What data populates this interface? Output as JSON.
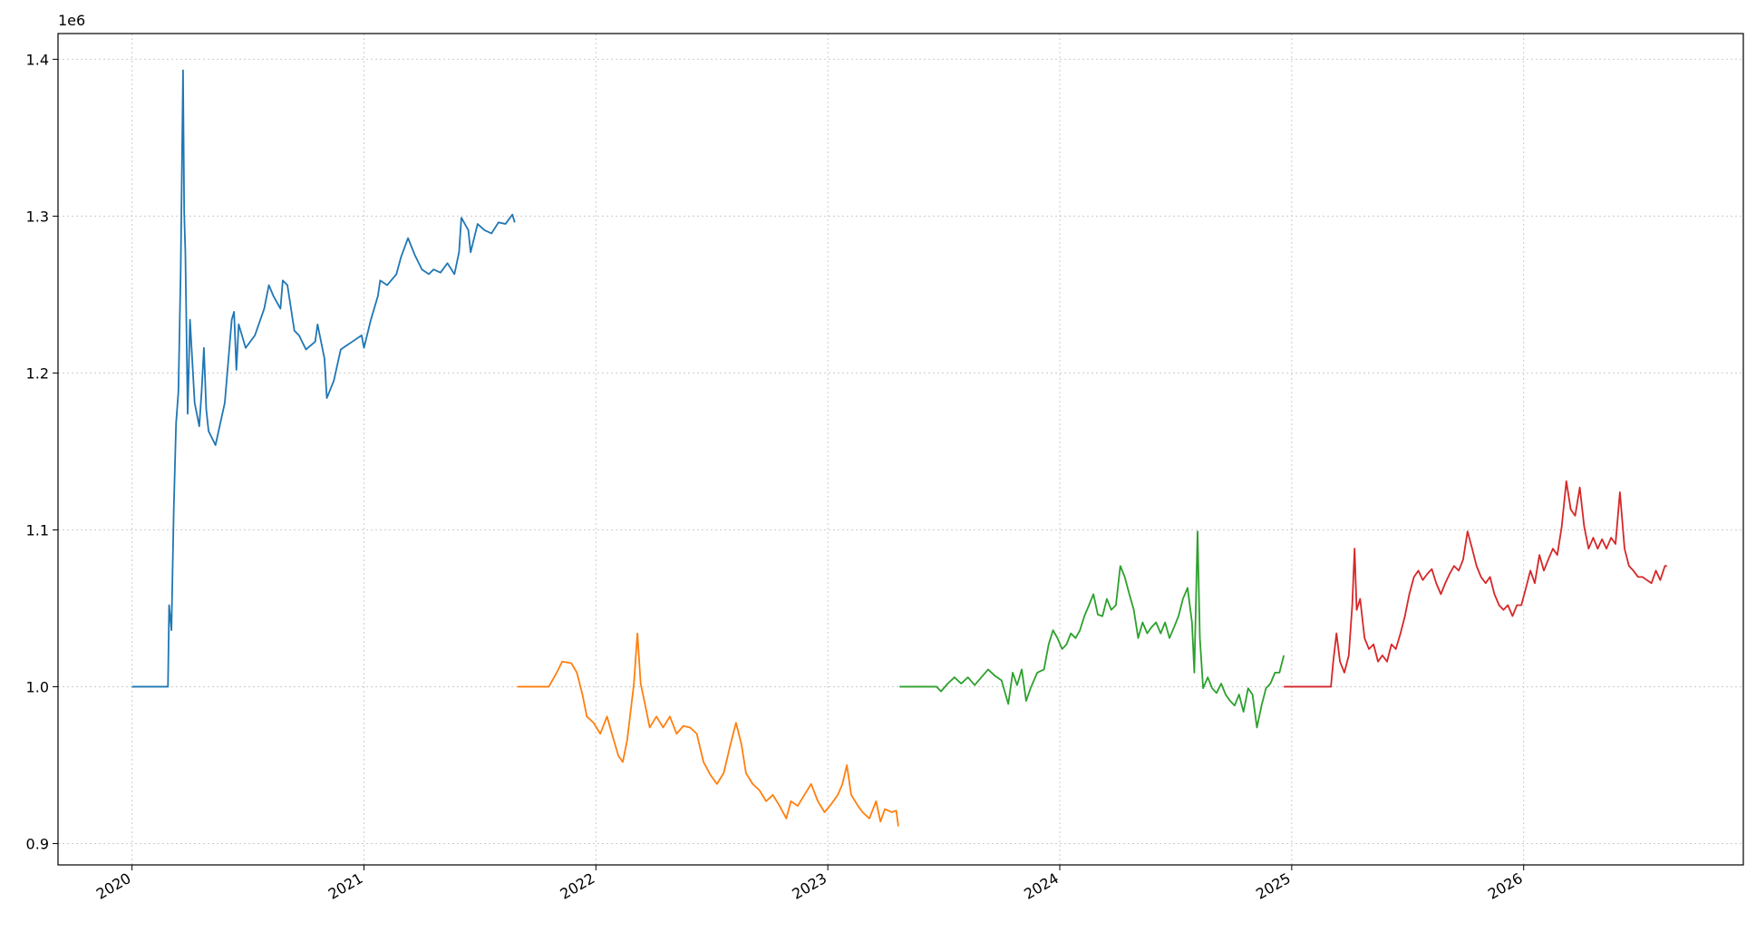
{
  "chart_data": {
    "type": "line",
    "y_offset_text": "1e6",
    "xlim": [
      2019.681,
      2026.947
    ],
    "xticks": [
      2020,
      2021,
      2022,
      2023,
      2024,
      2025,
      2026
    ],
    "ylim": [
      886400,
      1416400
    ],
    "yticks": [
      {
        "value": 900000,
        "label": "0.9"
      },
      {
        "value": 1000000,
        "label": "1.0"
      },
      {
        "value": 1100000,
        "label": "1.1"
      },
      {
        "value": 1200000,
        "label": "1.2"
      },
      {
        "value": 1300000,
        "label": "1.3"
      },
      {
        "value": 1400000,
        "label": "1.4"
      }
    ],
    "grid": true,
    "series": [
      {
        "color": "#1f77b4",
        "x": [
          2020.0,
          2020.155,
          2020.16,
          2020.17,
          2020.18,
          2020.19,
          2020.2,
          2020.21,
          2020.22,
          2020.225,
          2020.23,
          2020.24,
          2020.25,
          2020.27,
          2020.29,
          2020.3,
          2020.31,
          2020.32,
          2020.33,
          2020.36,
          2020.4,
          2020.43,
          2020.44,
          2020.45,
          2020.46,
          2020.49,
          2020.53,
          2020.57,
          2020.59,
          2020.61,
          2020.64,
          2020.65,
          2020.67,
          2020.7,
          2020.72,
          2020.75,
          2020.79,
          2020.8,
          2020.83,
          2020.84,
          2020.87,
          2020.9,
          2020.95,
          2020.99,
          2021.0,
          2021.03,
          2021.06,
          2021.07,
          2021.1,
          2021.14,
          2021.16,
          2021.19,
          2021.22,
          2021.25,
          2021.28,
          2021.3,
          2021.33,
          2021.36,
          2021.39,
          2021.41,
          2021.42,
          2021.45,
          2021.46,
          2021.49,
          2021.52,
          2021.55,
          2021.58,
          2021.61,
          2021.64,
          2021.65
        ],
        "values": [
          1000000,
          1000000,
          1052000,
          1036000,
          1113000,
          1168000,
          1188000,
          1266000,
          1393000,
          1302000,
          1277000,
          1174000,
          1234000,
          1181000,
          1166000,
          1188000,
          1216000,
          1177000,
          1163000,
          1154000,
          1181000,
          1234000,
          1239000,
          1202000,
          1231000,
          1216000,
          1224000,
          1241000,
          1256000,
          1249000,
          1241000,
          1259000,
          1256000,
          1227000,
          1224000,
          1215000,
          1220000,
          1231000,
          1209000,
          1184000,
          1195000,
          1215000,
          1220000,
          1224000,
          1216000,
          1234000,
          1249000,
          1259000,
          1256000,
          1263000,
          1274000,
          1286000,
          1275000,
          1266000,
          1263000,
          1266000,
          1264000,
          1270000,
          1263000,
          1277000,
          1299000,
          1291000,
          1277000,
          1295000,
          1291000,
          1289000,
          1296000,
          1295000,
          1301000,
          1296000
        ]
      },
      {
        "color": "#ff7f0e",
        "x": [
          2021.662,
          2021.797,
          2021.831,
          2021.855,
          2021.894,
          2021.918,
          2021.942,
          2021.961,
          2021.99,
          2022.019,
          2022.048,
          2022.077,
          2022.097,
          2022.116,
          2022.135,
          2022.164,
          2022.179,
          2022.193,
          2022.213,
          2022.232,
          2022.261,
          2022.29,
          2022.319,
          2022.348,
          2022.377,
          2022.406,
          2022.435,
          2022.464,
          2022.493,
          2022.522,
          2022.551,
          2022.58,
          2022.604,
          2022.628,
          2022.647,
          2022.676,
          2022.705,
          2022.734,
          2022.763,
          2022.792,
          2022.821,
          2022.841,
          2022.87,
          2022.899,
          2022.928,
          2022.957,
          2022.986,
          2023.014,
          2023.043,
          2023.063,
          2023.082,
          2023.101,
          2023.13,
          2023.15,
          2023.179,
          2023.208,
          2023.227,
          2023.246,
          2023.275,
          2023.295,
          2023.304
        ],
        "values": [
          1000000,
          1000000,
          1009000,
          1016000,
          1015000,
          1009000,
          995000,
          981000,
          977000,
          970000,
          981000,
          966000,
          956000,
          952000,
          966000,
          1002000,
          1034000,
          1002000,
          988000,
          974000,
          981000,
          974000,
          981000,
          970000,
          975000,
          974000,
          970000,
          952000,
          944000,
          938000,
          945000,
          963000,
          977000,
          963000,
          945000,
          938000,
          934000,
          927000,
          931000,
          924000,
          916000,
          927000,
          924000,
          931000,
          938000,
          927000,
          920000,
          925000,
          931000,
          938000,
          950000,
          931000,
          924000,
          920000,
          916000,
          927000,
          914000,
          922000,
          920000,
          921000,
          911000
        ]
      },
      {
        "color": "#2ca02c",
        "x": [
          2023.309,
          2023.469,
          2023.488,
          2023.517,
          2023.546,
          2023.575,
          2023.604,
          2023.633,
          2023.662,
          2023.691,
          2023.72,
          2023.749,
          2023.778,
          2023.797,
          2023.816,
          2023.836,
          2023.855,
          2023.874,
          2023.903,
          2023.932,
          2023.952,
          2023.971,
          2023.99,
          2024.01,
          2024.029,
          2024.048,
          2024.068,
          2024.087,
          2024.106,
          2024.126,
          2024.145,
          2024.164,
          2024.184,
          2024.203,
          2024.222,
          2024.242,
          2024.261,
          2024.28,
          2024.3,
          2024.319,
          2024.338,
          2024.357,
          2024.377,
          2024.396,
          2024.415,
          2024.435,
          2024.454,
          2024.473,
          2024.493,
          2024.512,
          2024.531,
          2024.551,
          2024.57,
          2024.58,
          2024.594,
          2024.604,
          2024.618,
          2024.638,
          2024.657,
          2024.676,
          2024.696,
          2024.715,
          2024.734,
          2024.754,
          2024.773,
          2024.792,
          2024.812,
          2024.831,
          2024.85,
          2024.87,
          2024.889,
          2024.908,
          2024.928,
          2024.947,
          2024.966
        ],
        "values": [
          1000000,
          1000000,
          997000,
          1002000,
          1006000,
          1002000,
          1006000,
          1001000,
          1006000,
          1011000,
          1007000,
          1004000,
          989000,
          1009000,
          1001000,
          1011000,
          991000,
          999000,
          1009000,
          1011000,
          1027000,
          1036000,
          1031000,
          1024000,
          1027000,
          1034000,
          1031000,
          1036000,
          1045000,
          1052000,
          1059000,
          1046000,
          1045000,
          1056000,
          1049000,
          1052000,
          1077000,
          1070000,
          1059000,
          1049000,
          1031000,
          1041000,
          1034000,
          1038000,
          1041000,
          1034000,
          1041000,
          1031000,
          1038000,
          1045000,
          1056000,
          1063000,
          1041000,
          1009000,
          1099000,
          1031000,
          999000,
          1006000,
          999000,
          996000,
          1002000,
          995000,
          991000,
          988000,
          995000,
          984000,
          999000,
          995000,
          974000,
          988000,
          999000,
          1002000,
          1009000,
          1009000,
          1020000
        ]
      },
      {
        "color": "#d62728",
        "x": [
          2024.966,
          2025.169,
          2025.179,
          2025.193,
          2025.208,
          2025.227,
          2025.246,
          2025.261,
          2025.271,
          2025.28,
          2025.295,
          2025.314,
          2025.333,
          2025.353,
          2025.372,
          2025.391,
          2025.411,
          2025.43,
          2025.449,
          2025.469,
          2025.488,
          2025.507,
          2025.527,
          2025.546,
          2025.565,
          2025.585,
          2025.604,
          2025.623,
          2025.643,
          2025.662,
          2025.681,
          2025.7,
          2025.72,
          2025.739,
          2025.758,
          2025.778,
          2025.797,
          2025.816,
          2025.836,
          2025.855,
          2025.874,
          2025.894,
          2025.913,
          2025.932,
          2025.952,
          2025.971,
          2025.99,
          2026.01,
          2026.029,
          2026.048,
          2026.068,
          2026.087,
          2026.106,
          2026.126,
          2026.145,
          2026.164,
          2026.184,
          2026.203,
          2026.222,
          2026.242,
          2026.261,
          2026.28,
          2026.3,
          2026.319,
          2026.338,
          2026.357,
          2026.377,
          2026.396,
          2026.415,
          2026.435,
          2026.454,
          2026.473,
          2026.493,
          2026.512,
          2026.531,
          2026.551,
          2026.57,
          2026.589,
          2026.609,
          2026.618
        ],
        "values": [
          1000000,
          1000000,
          1016000,
          1034000,
          1016000,
          1009000,
          1020000,
          1052000,
          1088000,
          1049000,
          1056000,
          1031000,
          1024000,
          1027000,
          1016000,
          1020000,
          1016000,
          1027000,
          1024000,
          1034000,
          1045000,
          1059000,
          1070000,
          1074000,
          1068000,
          1072000,
          1075000,
          1066000,
          1059000,
          1066000,
          1072000,
          1077000,
          1074000,
          1081000,
          1099000,
          1088000,
          1077000,
          1070000,
          1066000,
          1070000,
          1059000,
          1052000,
          1049000,
          1052000,
          1045000,
          1052000,
          1052000,
          1063000,
          1074000,
          1066000,
          1084000,
          1074000,
          1081000,
          1088000,
          1084000,
          1102000,
          1131000,
          1113000,
          1109000,
          1127000,
          1102000,
          1088000,
          1095000,
          1088000,
          1094000,
          1088000,
          1095000,
          1091000,
          1124000,
          1088000,
          1077000,
          1074000,
          1070000,
          1070000,
          1068000,
          1066000,
          1074000,
          1068000,
          1077000,
          1077000
        ]
      }
    ]
  }
}
